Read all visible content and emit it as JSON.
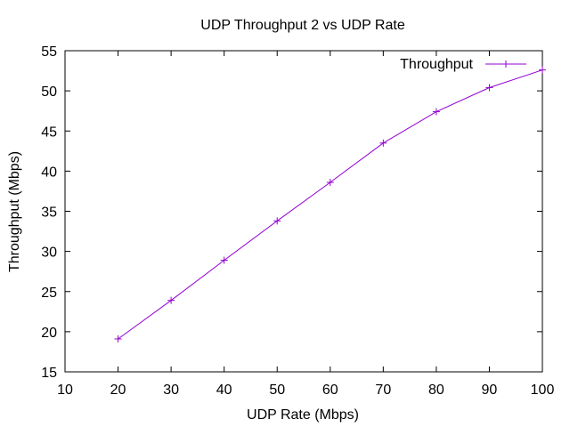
{
  "chart_data": {
    "type": "line",
    "title": "UDP Throughput 2 vs UDP Rate",
    "xlabel": "UDP Rate (Mbps)",
    "ylabel": "Throughput (Mbps)",
    "xlim": [
      10,
      100
    ],
    "ylim": [
      15,
      55
    ],
    "x_ticks": [
      10,
      20,
      30,
      40,
      50,
      60,
      70,
      80,
      90,
      100
    ],
    "y_ticks": [
      15,
      20,
      25,
      30,
      35,
      40,
      45,
      50,
      55
    ],
    "grid": false,
    "legend_position": "top-right",
    "marker": "plus",
    "series": [
      {
        "name": "Throughput",
        "color": "#9400d3",
        "x": [
          20,
          30,
          40,
          50,
          60,
          70,
          80,
          90,
          100
        ],
        "y": [
          19.1,
          23.9,
          28.9,
          33.8,
          38.6,
          43.5,
          47.4,
          50.4,
          52.6
        ]
      }
    ]
  }
}
